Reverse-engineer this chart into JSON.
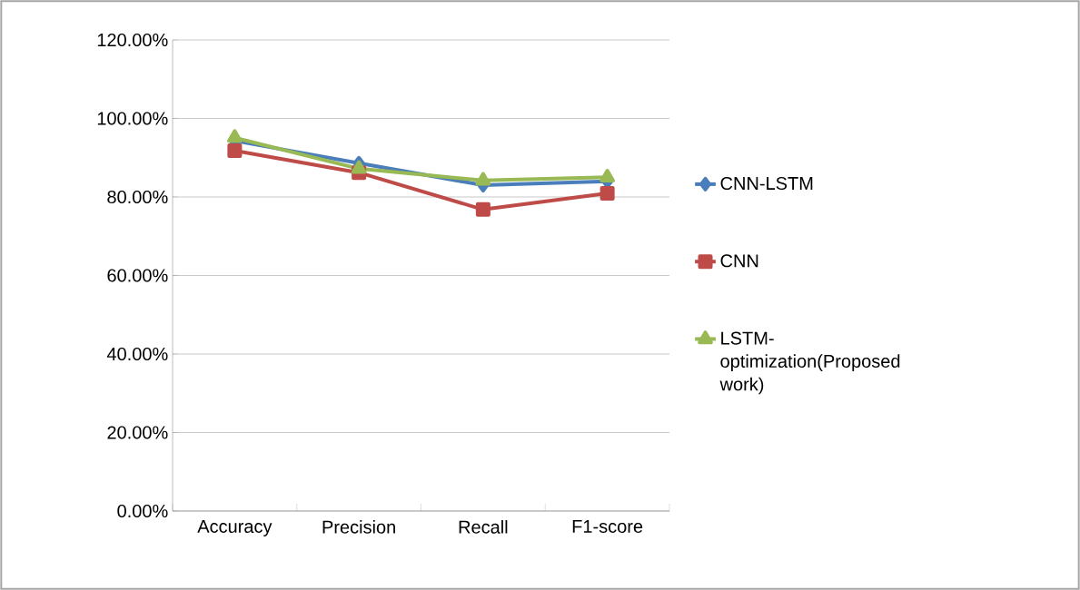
{
  "chart_data": {
    "type": "line",
    "categories": [
      "Accuracy",
      "Precision",
      "Recall",
      "F1-score"
    ],
    "series": [
      {
        "name": "CNN-LSTM",
        "color": "#4a7ebb",
        "marker": "diamond",
        "values": [
          94.3,
          88.6,
          83.0,
          84.0
        ]
      },
      {
        "name": "CNN",
        "color": "#be4b48",
        "marker": "square",
        "values": [
          91.8,
          86.2,
          76.8,
          80.9
        ]
      },
      {
        "name": "LSTM-optimization(Proposed work)",
        "color": "#98b954",
        "marker": "triangle",
        "values": [
          95.1,
          87.2,
          84.2,
          85.0
        ]
      }
    ],
    "ylim": [
      0,
      120
    ],
    "yticks": [
      {
        "value": 0,
        "label": "0.00%"
      },
      {
        "value": 20,
        "label": "20.00%"
      },
      {
        "value": 40,
        "label": "40.00%"
      },
      {
        "value": 60,
        "label": "60.00%"
      },
      {
        "value": 80,
        "label": "80.00%"
      },
      {
        "value": 100,
        "label": "100.00%"
      },
      {
        "value": 120,
        "label": "120.00%"
      }
    ],
    "grid": "y",
    "legend": "right",
    "line_style": "solid"
  }
}
